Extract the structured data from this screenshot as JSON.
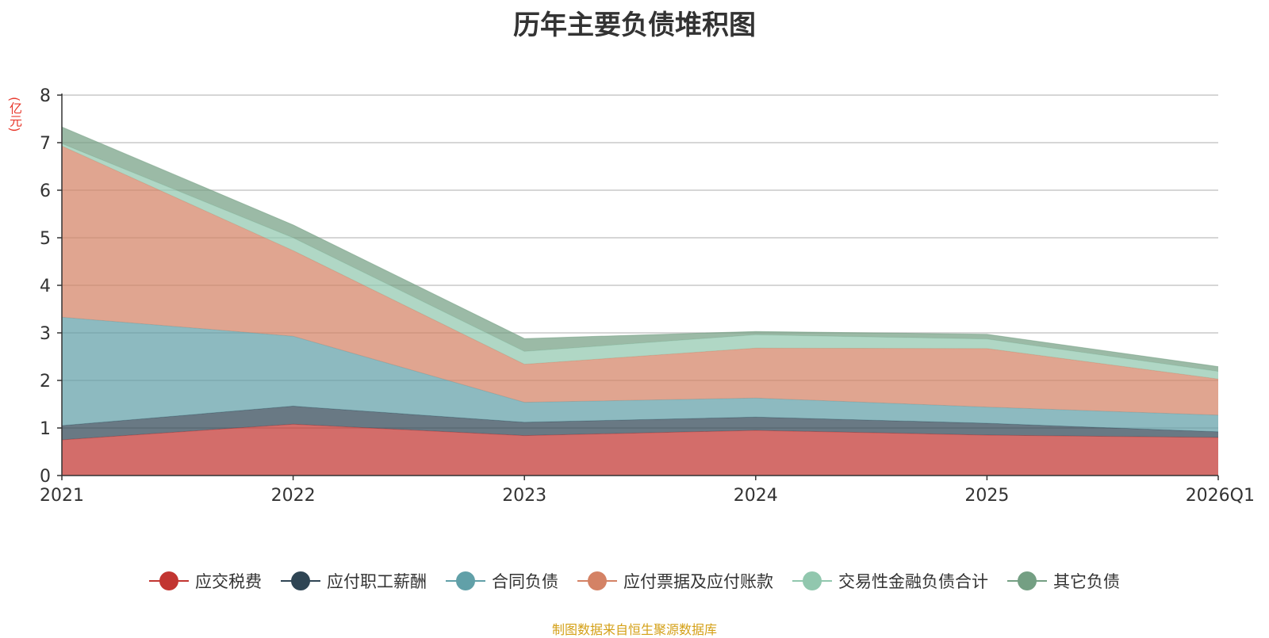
{
  "chart_data": {
    "type": "area",
    "stacked": true,
    "title": "历年主要负债堆积图",
    "ylabel": "(亿元)",
    "categories": [
      "2021",
      "2022",
      "2023",
      "2024",
      "2025",
      "2026Q1"
    ],
    "ylim": [
      0,
      8
    ],
    "yticks": [
      "0",
      "1",
      "2",
      "3",
      "4",
      "5",
      "6",
      "7",
      "8"
    ],
    "grid": true,
    "legend_position": "bottom",
    "series": [
      {
        "name": "应交税费",
        "color": "#c23531",
        "values": [
          0.75,
          1.08,
          0.84,
          0.95,
          0.85,
          0.8
        ]
      },
      {
        "name": "应付职工薪酬",
        "color": "#2f4554",
        "values": [
          0.3,
          0.38,
          0.28,
          0.28,
          0.25,
          0.12
        ]
      },
      {
        "name": "合同负债",
        "color": "#61a0a8",
        "values": [
          2.28,
          1.47,
          0.42,
          0.4,
          0.34,
          0.35
        ]
      },
      {
        "name": "应付票据及应付账款",
        "color": "#d48265",
        "values": [
          3.6,
          1.8,
          0.8,
          1.05,
          1.23,
          0.76
        ]
      },
      {
        "name": "交易性金融负债合计",
        "color": "#91c7ae",
        "values": [
          0.05,
          0.27,
          0.27,
          0.28,
          0.2,
          0.16
        ]
      },
      {
        "name": "其它负债",
        "color": "#749f83",
        "values": [
          0.35,
          0.27,
          0.27,
          0.07,
          0.1,
          0.1
        ]
      }
    ]
  },
  "source_note": "制图数据来自恒生聚源数据库"
}
